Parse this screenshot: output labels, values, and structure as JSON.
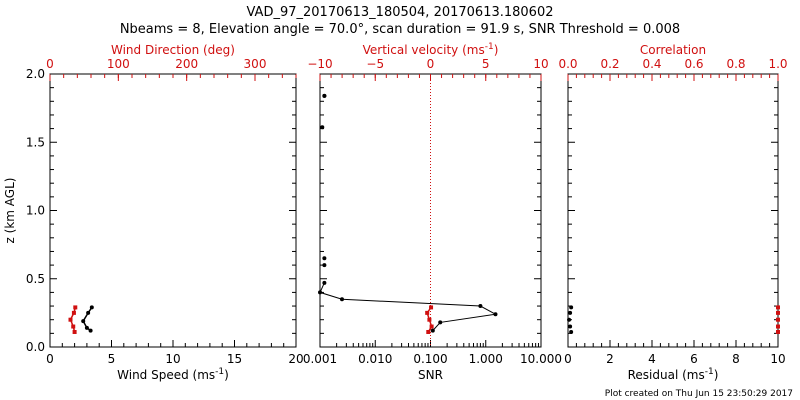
{
  "title_line1": "VAD_97_20170613_180504, 20170613.180602",
  "title_line2": "Nbeams = 8, Elevation angle = 70.0°, scan duration = 91.9 s, SNR Threshold = 0.008",
  "footer_note": "Plot created on Thu Jun 15 23:50:29 2017",
  "colors": {
    "axis": "#000000",
    "accent": "#d01010"
  },
  "chart_data": [
    {
      "name": "wind",
      "type": "line",
      "ylabel": "z (km AGL)",
      "ylim": [
        0,
        2
      ],
      "yticks": [
        "0.0",
        "0.5",
        "1.0",
        "1.5",
        "2.0"
      ],
      "bottom_axis": {
        "label": "Wind Speed (ms",
        "sup": "-1",
        "suffix": ")",
        "range": [
          0,
          20
        ],
        "ticks": [
          "0",
          "5",
          "10",
          "15",
          "20"
        ]
      },
      "top_axis": {
        "label": "Wind Direction (deg)",
        "range": [
          0,
          360
        ],
        "ticks": [
          "0",
          "100",
          "200",
          "300"
        ],
        "color": "#d01010"
      },
      "series": [
        {
          "name": "Wind Speed",
          "axis": "bottom",
          "color": "#000000",
          "x": [
            3.4,
            3.1,
            2.7,
            3.0,
            3.3
          ],
          "z": [
            0.29,
            0.25,
            0.19,
            0.14,
            0.12
          ]
        },
        {
          "name": "Wind Direction",
          "axis": "top",
          "color": "#d01010",
          "x": [
            37,
            35,
            30,
            34,
            36
          ],
          "z": [
            0.29,
            0.25,
            0.2,
            0.15,
            0.11
          ]
        }
      ]
    },
    {
      "name": "snr",
      "type": "line",
      "ylim": [
        0,
        2
      ],
      "bottom_axis": {
        "label": "SNR",
        "scale": "log",
        "range": [
          0.001,
          10
        ],
        "ticks": [
          "0.001",
          "0.010",
          "0.100",
          "1.000",
          "10.000"
        ]
      },
      "top_axis": {
        "label": "Vertical velocity (ms",
        "sup": "-1",
        "suffix": ")",
        "range": [
          -10,
          10
        ],
        "ticks": [
          "−10",
          "−5",
          "0",
          "5",
          "10"
        ],
        "color": "#d01010",
        "zero_line": true
      },
      "series": [
        {
          "name": "SNR",
          "axis": "bottom",
          "color": "#000000",
          "x": [
            0.0012,
            0.0012,
            0.0011,
            0.0012,
            0.0012,
            0.0012,
            0.001,
            0.0025,
            0.8,
            1.5,
            0.15,
            0.11
          ],
          "z": [
            1.84,
            1.84,
            1.61,
            0.65,
            0.6,
            0.47,
            0.4,
            0.35,
            0.3,
            0.24,
            0.18,
            0.12
          ]
        },
        {
          "name": "Vertical velocity",
          "axis": "top",
          "color": "#d01010",
          "x": [
            0.05,
            -0.3,
            -0.1,
            0.1,
            -0.2
          ],
          "z": [
            0.29,
            0.25,
            0.2,
            0.15,
            0.11
          ]
        }
      ]
    },
    {
      "name": "residual",
      "type": "scatter",
      "ylim": [
        0,
        2
      ],
      "bottom_axis": {
        "label": "Residual (ms",
        "sup": "-1",
        "suffix": ")",
        "range": [
          0,
          10
        ],
        "ticks": [
          "0",
          "2",
          "4",
          "6",
          "8",
          "10"
        ]
      },
      "top_axis": {
        "label": "Correlation",
        "range": [
          0,
          1
        ],
        "ticks": [
          "0.0",
          "0.2",
          "0.4",
          "0.6",
          "0.8",
          "1.0"
        ],
        "color": "#d01010"
      },
      "series": [
        {
          "name": "Residual",
          "axis": "bottom",
          "color": "#000000",
          "x": [
            0.15,
            0.1,
            0.05,
            0.1,
            0.15
          ],
          "z": [
            0.29,
            0.25,
            0.2,
            0.15,
            0.11
          ]
        },
        {
          "name": "Correlation",
          "axis": "top",
          "color": "#d01010",
          "x": [
            1.0,
            1.0,
            1.0,
            1.0,
            1.0
          ],
          "z": [
            0.29,
            0.25,
            0.2,
            0.15,
            0.11
          ]
        }
      ]
    }
  ]
}
